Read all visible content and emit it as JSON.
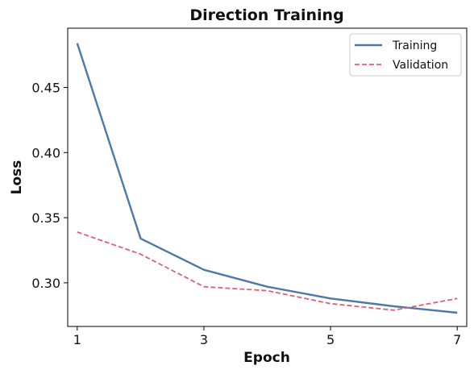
{
  "chart_data": {
    "type": "line",
    "title": "Direction Training",
    "xlabel": "Epoch",
    "ylabel": "Loss",
    "x": [
      1,
      2,
      3,
      4,
      5,
      6,
      7
    ],
    "xticks": [
      1,
      3,
      5,
      7
    ],
    "yticks": [
      0.3,
      0.35,
      0.4,
      0.45
    ],
    "ytick_labels": [
      "0.30",
      "0.35",
      "0.40",
      "0.45"
    ],
    "xlim": [
      0.85,
      7.15
    ],
    "ylim": [
      0.2665,
      0.4955
    ],
    "grid": false,
    "legend_position": "top-right",
    "series": [
      {
        "name": "Training",
        "values": [
          0.484,
          0.334,
          0.31,
          0.297,
          0.288,
          0.282,
          0.277
        ],
        "color": "#4e79a7",
        "style": "solid"
      },
      {
        "name": "Validation",
        "values": [
          0.339,
          0.322,
          0.297,
          0.294,
          0.284,
          0.279,
          0.288
        ],
        "color": "#e15e7b",
        "style": "dashed"
      }
    ]
  }
}
